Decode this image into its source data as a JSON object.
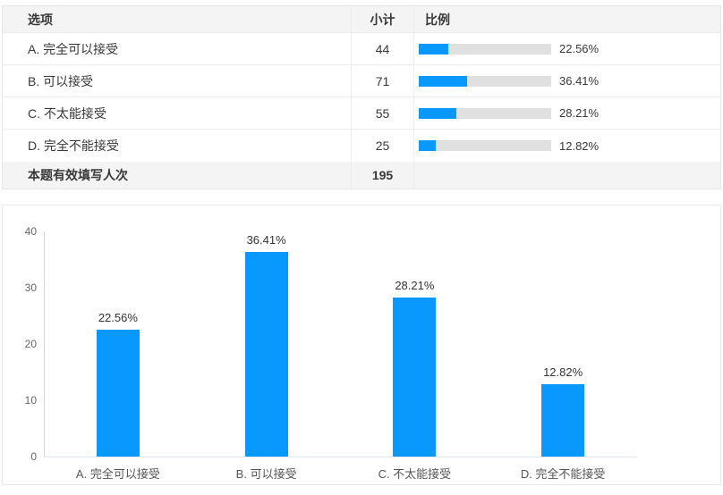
{
  "colors": {
    "accent": "#0998fd",
    "bar_track": "#e0e0e0",
    "row_highlight_bg": "#f4f4f4"
  },
  "table": {
    "headers": [
      "选项",
      "小计",
      "比例"
    ],
    "rows": [
      {
        "option": "A. 完全可以接受",
        "count": "44",
        "percent": "22.56%",
        "percent_value": 22.56
      },
      {
        "option": "B. 可以接受",
        "count": "71",
        "percent": "36.41%",
        "percent_value": 36.41
      },
      {
        "option": "C. 不太能接受",
        "count": "55",
        "percent": "28.21%",
        "percent_value": 28.21
      },
      {
        "option": "D. 完全不能接受",
        "count": "25",
        "percent": "12.82%",
        "percent_value": 12.82
      }
    ],
    "footer": {
      "label": "本题有效填写人次",
      "count": "195"
    }
  },
  "chart_data": {
    "type": "bar",
    "categories": [
      "A. 完全可以接受",
      "B. 可以接受",
      "C. 不太能接受",
      "D. 完全不能接受"
    ],
    "values": [
      22.56,
      36.41,
      28.21,
      12.82
    ],
    "data_labels": [
      "22.56%",
      "36.41%",
      "28.21%",
      "12.82%"
    ],
    "title": "",
    "xlabel": "",
    "ylabel": "",
    "ylim": [
      0,
      40
    ],
    "yticks": [
      0,
      10,
      20,
      30,
      40
    ],
    "grid": false,
    "legend": false,
    "bar_color": "#0998fd"
  }
}
